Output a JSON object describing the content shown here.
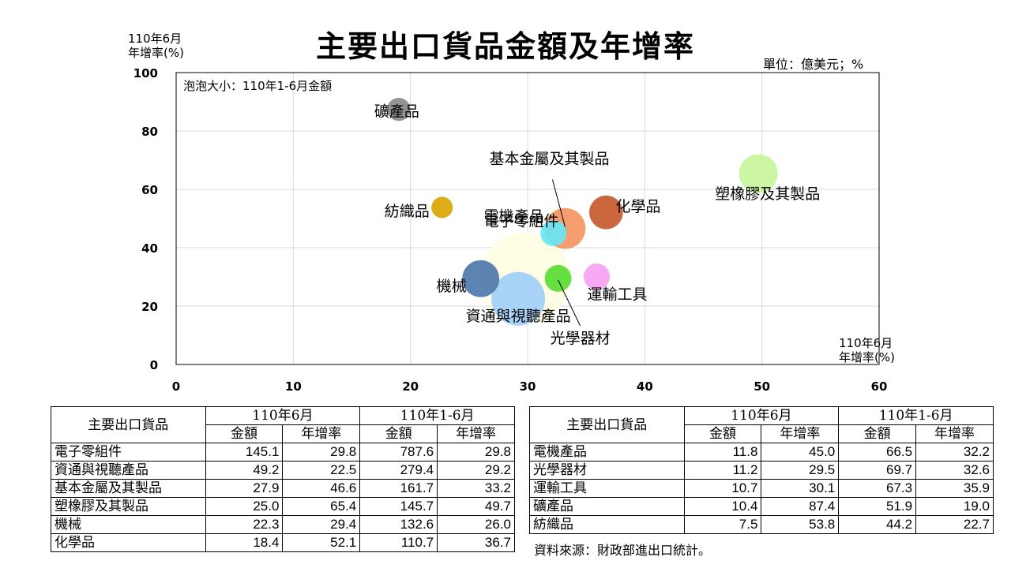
{
  "title": "主要出口貨品金額及年增率",
  "unit_label": "單位：億美元；%",
  "bubble_note": "泡泡大小：110年1-6月金額",
  "source_note": "資料來源：財政部進出口統計。",
  "chart_data": {
    "type": "bubble",
    "title": "主要出口貨品金額及年增率",
    "y_axis_title": [
      "110年6月",
      "年增率(%)"
    ],
    "x_axis_title": [
      "110年6月",
      "年增率(%)"
    ],
    "xlim": [
      0,
      60
    ],
    "ylim": [
      0,
      100
    ],
    "x_ticks": [
      "0",
      "10",
      "20",
      "30",
      "40",
      "50",
      "60"
    ],
    "y_ticks": [
      "0",
      "20",
      "40",
      "60",
      "80",
      "100"
    ],
    "grid": true,
    "points": [
      {
        "name": "電子零組件",
        "x": 29.8,
        "y": 29.8,
        "size": 787.6,
        "color": "#fffde0"
      },
      {
        "name": "資通與視聽產品",
        "x": 29.2,
        "y": 22.5,
        "size": 279.4,
        "color": "#9fcdf7"
      },
      {
        "name": "基本金屬及其製品",
        "x": 33.2,
        "y": 46.6,
        "size": 161.7,
        "color": "#f4925e"
      },
      {
        "name": "塑橡膠及其製品",
        "x": 49.7,
        "y": 65.4,
        "size": 145.7,
        "color": "#c8f59a"
      },
      {
        "name": "機械",
        "x": 26.0,
        "y": 29.4,
        "size": 132.6,
        "color": "#4a76a8"
      },
      {
        "name": "化學品",
        "x": 36.7,
        "y": 52.1,
        "size": 110.7,
        "color": "#c5572a"
      },
      {
        "name": "電機產品",
        "x": 32.2,
        "y": 45.0,
        "size": 66.5,
        "color": "#66e8f6"
      },
      {
        "name": "光學器材",
        "x": 32.6,
        "y": 29.5,
        "size": 69.7,
        "color": "#55dd2f"
      },
      {
        "name": "運輸工具",
        "x": 35.9,
        "y": 30.1,
        "size": 67.3,
        "color": "#f7a0f2"
      },
      {
        "name": "礦產品",
        "x": 19.0,
        "y": 87.4,
        "size": 51.9,
        "color": "#888888"
      },
      {
        "name": "紡織品",
        "x": 22.7,
        "y": 53.8,
        "size": 44.2,
        "color": "#d9a400"
      }
    ]
  },
  "table_left": {
    "header_item": "主要出口貨品",
    "group1": "110年6月",
    "group2": "110年1-6月",
    "sub_amount": "金額",
    "sub_growth": "年增率",
    "rows": [
      {
        "name": "電子零組件",
        "v": [
          "145.1",
          "29.8",
          "787.6",
          "29.8"
        ]
      },
      {
        "name": "資通與視聽產品",
        "v": [
          "49.2",
          "22.5",
          "279.4",
          "29.2"
        ]
      },
      {
        "name": "基本金屬及其製品",
        "v": [
          "27.9",
          "46.6",
          "161.7",
          "33.2"
        ]
      },
      {
        "name": "塑橡膠及其製品",
        "v": [
          "25.0",
          "65.4",
          "145.7",
          "49.7"
        ]
      },
      {
        "name": "機械",
        "v": [
          "22.3",
          "29.4",
          "132.6",
          "26.0"
        ]
      },
      {
        "name": "化學品",
        "v": [
          "18.4",
          "52.1",
          "110.7",
          "36.7"
        ]
      }
    ]
  },
  "table_right": {
    "header_item": "主要出口貨品",
    "group1": "110年6月",
    "group2": "110年1-6月",
    "sub_amount": "金額",
    "sub_growth": "年增率",
    "rows": [
      {
        "name": "電機產品",
        "v": [
          "11.8",
          "45.0",
          "66.5",
          "32.2"
        ]
      },
      {
        "name": "光學器材",
        "v": [
          "11.2",
          "29.5",
          "69.7",
          "32.6"
        ]
      },
      {
        "name": "運輸工具",
        "v": [
          "10.7",
          "30.1",
          "67.3",
          "35.9"
        ]
      },
      {
        "name": "礦產品",
        "v": [
          "10.4",
          "87.4",
          "51.9",
          "19.0"
        ]
      },
      {
        "name": "紡織品",
        "v": [
          "7.5",
          "53.8",
          "44.2",
          "22.7"
        ]
      }
    ]
  }
}
